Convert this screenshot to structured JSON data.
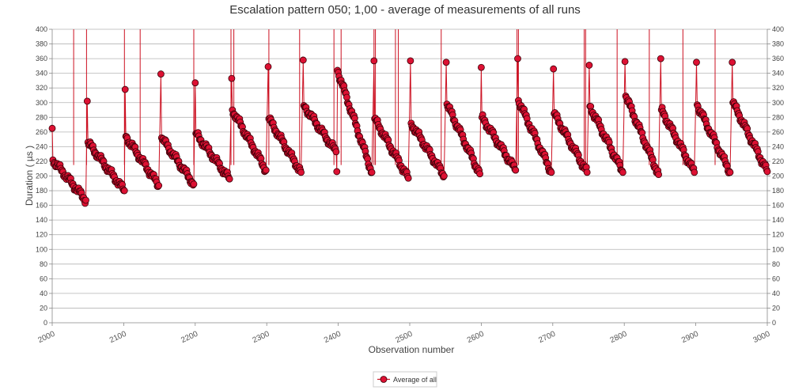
{
  "chart_data": {
    "type": "line",
    "title": "Escalation pattern 050; 1,00 - average of measurements of all runs",
    "xlabel": "Observation number",
    "ylabel": "Duration ( µs )",
    "xlim": [
      2000,
      3000
    ],
    "ylim": [
      0,
      400
    ],
    "x_ticks": [
      "2000",
      "2100",
      "2200",
      "2300",
      "2400",
      "2500",
      "2600",
      "2700",
      "2800",
      "2900",
      "3000"
    ],
    "y_ticks": [
      "0",
      "20",
      "40",
      "60",
      "80",
      "100",
      "120",
      "140",
      "160",
      "180",
      "200",
      "220",
      "240",
      "260",
      "280",
      "300",
      "320",
      "340",
      "360",
      "380",
      "400"
    ],
    "grid": true,
    "legend_position": "bottom-center",
    "series": [
      {
        "name": "Average of all",
        "color": "#cc1122",
        "marker": "circle",
        "segments": [
          {
            "start": 2000,
            "end": 2047,
            "start_y": 265,
            "peak_y": 222,
            "end_y": 167
          },
          {
            "start": 2049,
            "end": 2101,
            "start_y": 302,
            "peak_y": 246,
            "end_y": 180
          },
          {
            "start": 2102,
            "end": 2149,
            "start_y": 318,
            "peak_y": 254,
            "end_y": 187
          },
          {
            "start": 2152,
            "end": 2198,
            "start_y": 339,
            "peak_y": 252,
            "end_y": 189
          },
          {
            "start": 2200,
            "end": 2248,
            "start_y": 327,
            "peak_y": 258,
            "end_y": 196
          },
          {
            "start": 2251,
            "end": 2299,
            "start_y": 333,
            "peak_y": 290,
            "end_y": 208
          },
          {
            "start": 2302,
            "end": 2348,
            "start_y": 349,
            "peak_y": 278,
            "end_y": 205
          },
          {
            "start": 2351,
            "end": 2397,
            "start_y": 358,
            "peak_y": 296,
            "end_y": 233
          },
          {
            "start": 2398,
            "end": 2447,
            "start_y": 206,
            "peak_y": 344,
            "end_y": 205
          },
          {
            "start": 2450,
            "end": 2498,
            "start_y": 357,
            "peak_y": 278,
            "end_y": 197
          },
          {
            "start": 2501,
            "end": 2548,
            "start_y": 357,
            "peak_y": 272,
            "end_y": 200
          },
          {
            "start": 2551,
            "end": 2598,
            "start_y": 355,
            "peak_y": 298,
            "end_y": 203
          },
          {
            "start": 2600,
            "end": 2648,
            "start_y": 348,
            "peak_y": 280,
            "end_y": 208
          },
          {
            "start": 2651,
            "end": 2698,
            "start_y": 360,
            "peak_y": 303,
            "end_y": 205
          },
          {
            "start": 2701,
            "end": 2748,
            "start_y": 346,
            "peak_y": 285,
            "end_y": 205
          },
          {
            "start": 2751,
            "end": 2798,
            "start_y": 351,
            "peak_y": 295,
            "end_y": 205
          },
          {
            "start": 2801,
            "end": 2848,
            "start_y": 356,
            "peak_y": 309,
            "end_y": 202
          },
          {
            "start": 2851,
            "end": 2898,
            "start_y": 360,
            "peak_y": 290,
            "end_y": 205
          },
          {
            "start": 2901,
            "end": 2948,
            "start_y": 355,
            "peak_y": 297,
            "end_y": 205
          },
          {
            "start": 2951,
            "end": 3000,
            "start_y": 355,
            "peak_y": 300,
            "end_y": 206
          }
        ],
        "spikes_above_range": [
          2030,
          2048,
          2101,
          2123,
          2198,
          2250,
          2254,
          2303,
          2346,
          2394,
          2404,
          2450,
          2452,
          2480,
          2484,
          2544,
          2650,
          2652,
          2744,
          2746,
          2790,
          2835,
          2882,
          2927
        ]
      }
    ]
  }
}
